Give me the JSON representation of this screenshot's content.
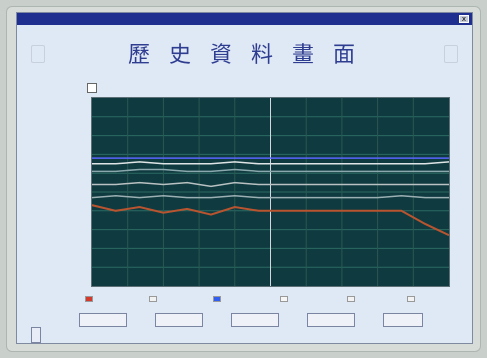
{
  "window": {
    "app": "",
    "close_label": "x"
  },
  "header": {
    "left_button": "",
    "right_button": "",
    "title": "歷 史 資 料 畫 面",
    "subtitle": ""
  },
  "top_strip": "",
  "chart": {
    "y_axis_label": "",
    "right_labels": [
      "",
      "",
      "",
      "",
      "",
      "",
      "",
      ""
    ],
    "x_ticks": [
      "",
      "",
      "",
      "",
      "",
      ""
    ],
    "x_axis_label": "",
    "legend": [
      {
        "label": "",
        "color": "#d43a2b"
      },
      {
        "label": "",
        "color": "#f1f1f1"
      },
      {
        "label": "",
        "color": "#2f5ef0"
      },
      {
        "label": "",
        "color": "#f6f6f6"
      },
      {
        "label": "",
        "color": "#f2f2f2"
      },
      {
        "label": "",
        "color": "#f2f2f2"
      }
    ]
  },
  "buttons": {
    "left_bottom": "",
    "row": [
      "",
      "",
      "",
      "",
      ""
    ]
  },
  "footer": {
    "company": "",
    "company_sub": ""
  },
  "chart_data": {
    "type": "line",
    "title": "",
    "xlabel": "",
    "ylabel": "",
    "grid": true,
    "series": [
      {
        "values": [
          0.65,
          0.65,
          0.66,
          0.65,
          0.65,
          0.65,
          0.66,
          0.65,
          0.65,
          0.65,
          0.65,
          0.65,
          0.65,
          0.65,
          0.65,
          0.66
        ]
      },
      {
        "values": [
          0.61,
          0.61,
          0.62,
          0.62,
          0.61,
          0.61,
          0.62,
          0.61,
          0.61,
          0.61,
          0.61,
          0.61,
          0.61,
          0.61,
          0.61,
          0.61
        ]
      },
      {
        "values": [
          0.54,
          0.54,
          0.55,
          0.54,
          0.55,
          0.53,
          0.55,
          0.54,
          0.54,
          0.54,
          0.54,
          0.54,
          0.54,
          0.54,
          0.54,
          0.54
        ]
      },
      {
        "values": [
          0.47,
          0.48,
          0.47,
          0.48,
          0.47,
          0.47,
          0.48,
          0.47,
          0.47,
          0.47,
          0.47,
          0.47,
          0.47,
          0.48,
          0.47,
          0.47
        ]
      },
      {
        "values": [
          0.43,
          0.4,
          0.42,
          0.39,
          0.41,
          0.38,
          0.42,
          0.4,
          0.4,
          0.4,
          0.4,
          0.4,
          0.4,
          0.4,
          0.33,
          0.27
        ]
      },
      {
        "values": [
          0.68,
          0.68,
          0.68,
          0.68,
          0.68,
          0.68,
          0.68,
          0.68,
          0.68,
          0.68,
          0.68,
          0.68,
          0.68,
          0.68,
          0.68,
          0.68
        ]
      }
    ],
    "colors": [
      "#dfe5e6",
      "#8aa8ad",
      "#b9c1c2",
      "#9bb0b3",
      "#b8542f",
      "#5a66ff"
    ],
    "ylim": [
      0,
      1
    ]
  }
}
